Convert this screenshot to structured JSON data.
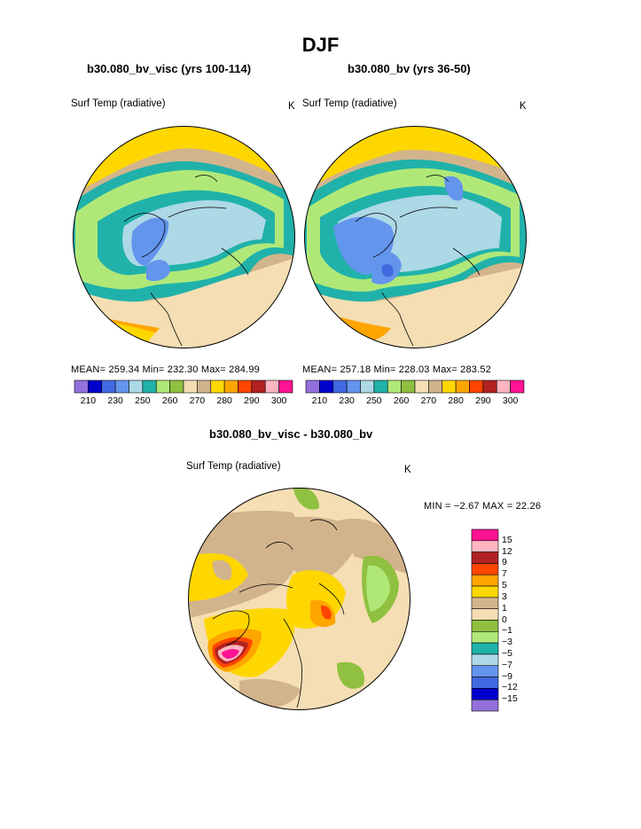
{
  "title": "DJF",
  "panels": [
    {
      "title": "b30.080_bv_visc (yrs 100-114)",
      "variable": "Surf Temp (radiative)",
      "units": "K",
      "stats": "MEAN= 259.34   Min= 232.30   Max= 284.99"
    },
    {
      "title": "b30.080_bv (yrs 36-50)",
      "variable": "Surf Temp (radiative)",
      "units": "K",
      "stats": "MEAN= 257.18   Min= 228.03   Max= 283.52"
    }
  ],
  "colorbar_top": {
    "colors": [
      "#9370db",
      "#0000cd",
      "#4169e1",
      "#6495ed",
      "#add8e6",
      "#20b2aa",
      "#b0e878",
      "#90c040",
      "#f5deb3",
      "#d2b48c",
      "#ffd700",
      "#ffa500",
      "#ff4500",
      "#b22222",
      "#ffb6c1",
      "#ff1493"
    ],
    "tick_labels": [
      "210",
      "230",
      "250",
      "260",
      "270",
      "280",
      "290",
      "300"
    ]
  },
  "diff": {
    "title": "b30.080_bv_visc - b30.080_bv",
    "variable": "Surf Temp (radiative)",
    "units": "K",
    "min_label": "MIN =",
    "min_value": "−2.67",
    "max_label": "MAX =",
    "max_value": "22.26",
    "colors": [
      "#ff1493",
      "#ffb6c1",
      "#b22222",
      "#ff4500",
      "#ffa500",
      "#ffd700",
      "#d2b48c",
      "#f5deb3",
      "#90c040",
      "#b0e878",
      "#20b2aa",
      "#add8e6",
      "#6495ed",
      "#4169e1",
      "#0000cd",
      "#9370db"
    ],
    "tick_labels": [
      "15",
      "12",
      "9",
      "7",
      "5",
      "3",
      "1",
      "0",
      "−1",
      "−3",
      "−5",
      "−7",
      "−9",
      "−12",
      "−15"
    ]
  }
}
